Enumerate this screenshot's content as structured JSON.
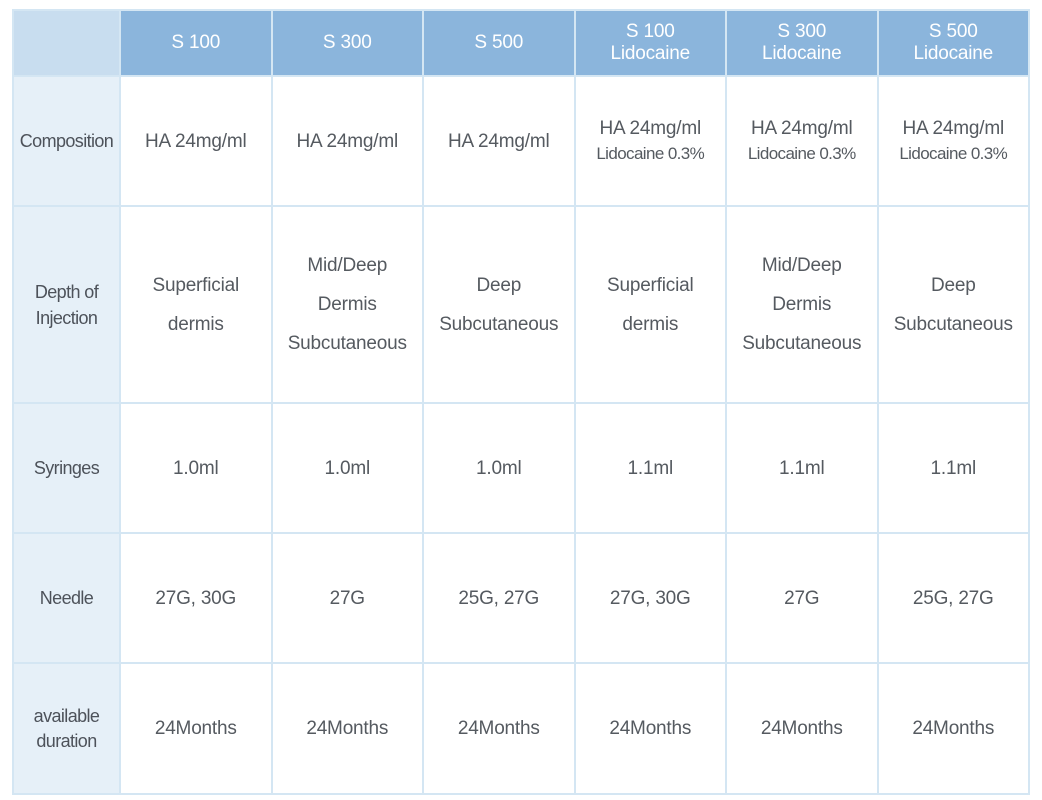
{
  "header": {
    "columns": [
      {
        "title": "S 100",
        "subtitle": ""
      },
      {
        "title": "S 300",
        "subtitle": ""
      },
      {
        "title": "S 500",
        "subtitle": ""
      },
      {
        "title": "S 100",
        "subtitle": "Lidocaine"
      },
      {
        "title": "S 300",
        "subtitle": "Lidocaine"
      },
      {
        "title": "S 500",
        "subtitle": "Lidocaine"
      }
    ]
  },
  "rows": {
    "composition": {
      "label": "Composition",
      "cells": [
        {
          "main": "HA 24mg/ml",
          "sub": ""
        },
        {
          "main": "HA 24mg/ml",
          "sub": ""
        },
        {
          "main": "HA 24mg/ml",
          "sub": ""
        },
        {
          "main": "HA 24mg/ml",
          "sub": "Lidocaine 0.3%"
        },
        {
          "main": "HA 24mg/ml",
          "sub": "Lidocaine 0.3%"
        },
        {
          "main": "HA 24mg/ml",
          "sub": "Lidocaine 0.3%"
        }
      ]
    },
    "depth": {
      "label_line1": "Depth of",
      "label_line2": "Injection",
      "cells": [
        [
          "Superficial",
          "dermis"
        ],
        [
          "Mid/Deep",
          "Dermis",
          "Subcutaneous"
        ],
        [
          "Deep",
          "Subcutaneous"
        ],
        [
          "Superficial",
          "dermis"
        ],
        [
          "Mid/Deep",
          "Dermis",
          "Subcutaneous"
        ],
        [
          "Deep",
          "Subcutaneous"
        ]
      ]
    },
    "syringes": {
      "label": "Syringes",
      "cells": [
        "1.0ml",
        "1.0ml",
        "1.0ml",
        "1.1ml",
        "1.1ml",
        "1.1ml"
      ]
    },
    "needle": {
      "label": "Needle",
      "cells": [
        "27G, 30G",
        "27G",
        "25G, 27G",
        "27G, 30G",
        "27G",
        "25G, 27G"
      ]
    },
    "duration": {
      "label_line1": "available",
      "label_line2": "duration",
      "cells": [
        "24Months",
        "24Months",
        "24Months",
        "24Months",
        "24Months",
        "24Months"
      ]
    }
  },
  "colors": {
    "header_bg": "#8bb5dc",
    "corner_bg": "#c8ddef",
    "label_bg": "#e6f0f8",
    "border": "#d4e6f3",
    "text": "#555a60"
  }
}
